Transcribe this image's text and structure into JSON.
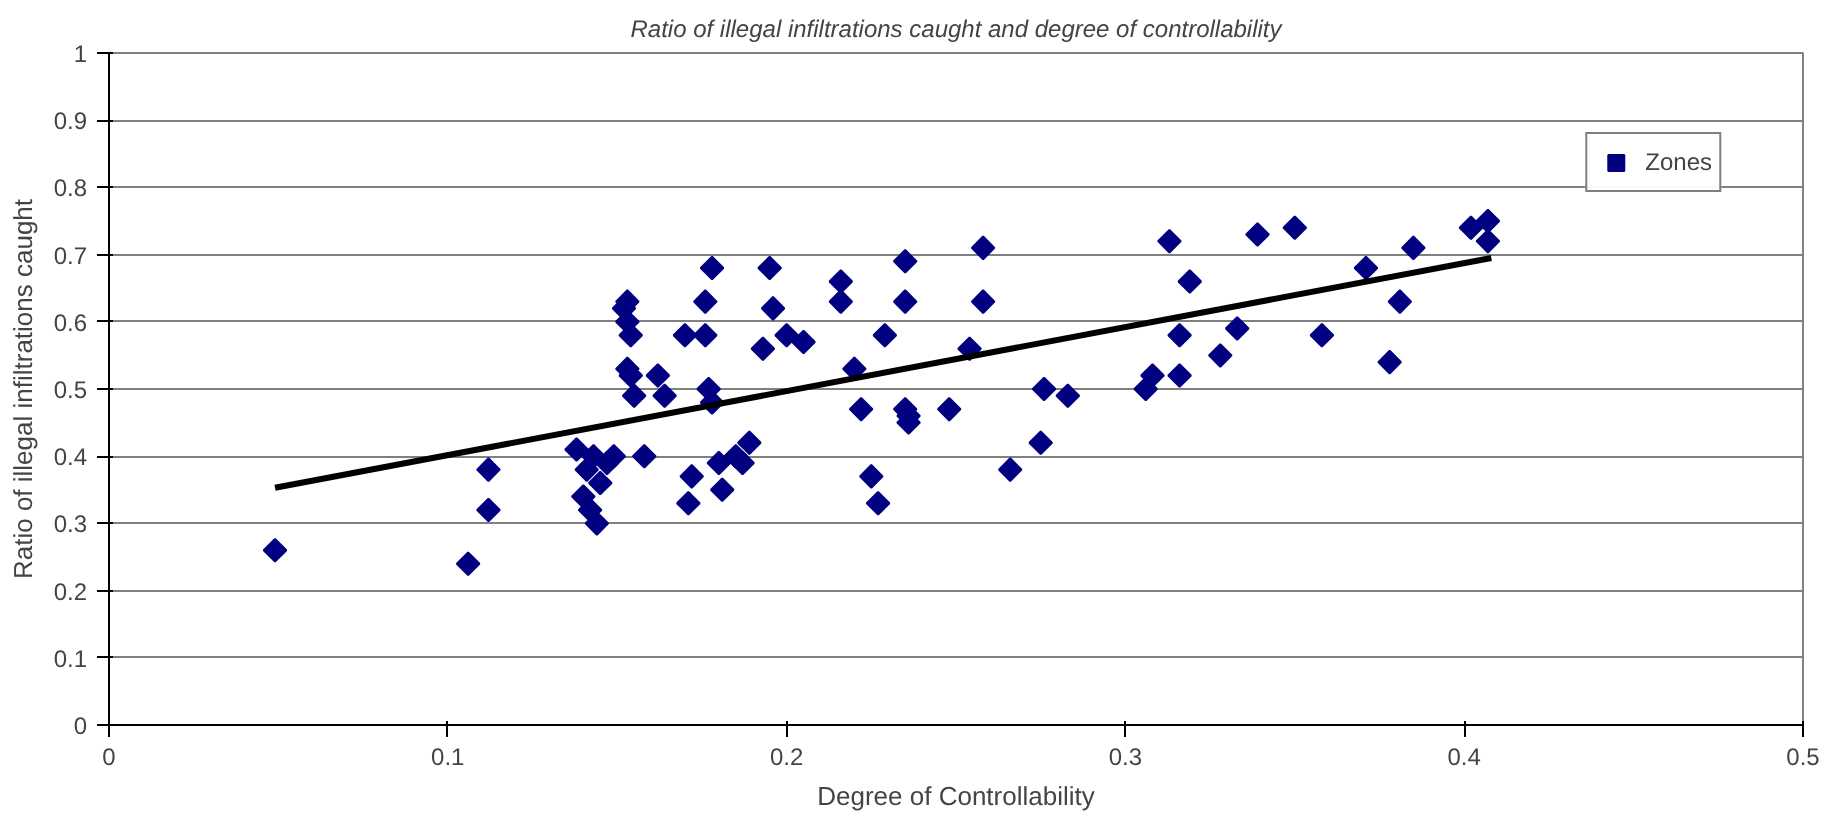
{
  "chart_data": {
    "type": "scatter",
    "title": "Ratio of illegal infiltrations caught and degree of controllability",
    "xlabel": "Degree of Controllability",
    "ylabel": "Ratio of illegal infiltrations caught",
    "xlim": [
      0,
      0.5
    ],
    "xticks": [
      0,
      0.1,
      0.2,
      0.3,
      0.4,
      0.5
    ],
    "ylim": [
      0,
      1
    ],
    "yticks": [
      0,
      0.1,
      0.2,
      0.3,
      0.4,
      0.5,
      0.6,
      0.7,
      0.8,
      0.9,
      1
    ],
    "grid": "y",
    "legend": "top right",
    "series": [
      {
        "name": "Zones",
        "color": "#000080",
        "marker": "diamond",
        "x": [
          0.049,
          0.106,
          0.112,
          0.112,
          0.138,
          0.141,
          0.143,
          0.14,
          0.142,
          0.144,
          0.147,
          0.149,
          0.145,
          0.152,
          0.153,
          0.153,
          0.154,
          0.154,
          0.155,
          0.153,
          0.158,
          0.162,
          0.164,
          0.17,
          0.172,
          0.171,
          0.176,
          0.176,
          0.178,
          0.177,
          0.178,
          0.18,
          0.181,
          0.185,
          0.187,
          0.189,
          0.193,
          0.195,
          0.196,
          0.2,
          0.205,
          0.216,
          0.216,
          0.22,
          0.222,
          0.225,
          0.227,
          0.229,
          0.235,
          0.235,
          0.235,
          0.236,
          0.236,
          0.248,
          0.254,
          0.258,
          0.258,
          0.266,
          0.275,
          0.276,
          0.283,
          0.306,
          0.308,
          0.313,
          0.316,
          0.316,
          0.319,
          0.328,
          0.333,
          0.339,
          0.35,
          0.358,
          0.371,
          0.378,
          0.381,
          0.385,
          0.402,
          0.407,
          0.407
        ],
        "values": [
          0.26,
          0.24,
          0.38,
          0.32,
          0.41,
          0.38,
          0.4,
          0.34,
          0.32,
          0.3,
          0.39,
          0.4,
          0.36,
          0.62,
          0.63,
          0.6,
          0.58,
          0.52,
          0.49,
          0.53,
          0.4,
          0.52,
          0.49,
          0.58,
          0.37,
          0.33,
          0.63,
          0.58,
          0.68,
          0.5,
          0.48,
          0.39,
          0.35,
          0.4,
          0.39,
          0.42,
          0.56,
          0.68,
          0.62,
          0.58,
          0.57,
          0.66,
          0.63,
          0.53,
          0.47,
          0.37,
          0.33,
          0.58,
          0.69,
          0.63,
          0.47,
          0.45,
          0.46,
          0.47,
          0.56,
          0.71,
          0.63,
          0.38,
          0.42,
          0.5,
          0.49,
          0.5,
          0.52,
          0.72,
          0.58,
          0.52,
          0.66,
          0.55,
          0.59,
          0.73,
          0.74,
          0.58,
          0.68,
          0.54,
          0.63,
          0.71,
          0.74,
          0.75,
          0.72
        ]
      },
      {
        "type": "line",
        "color": "#000000",
        "x": [
          0.049,
          0.408
        ],
        "values": [
          0.353,
          0.695
        ],
        "marker": "none"
      }
    ]
  }
}
